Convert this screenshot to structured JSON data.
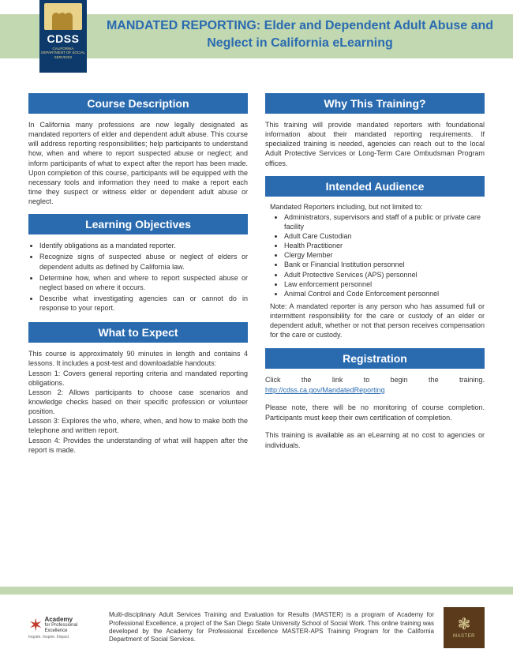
{
  "colors": {
    "band": "#c2d8b0",
    "header_blue": "#2a6bb0",
    "logo_navy": "#0d3a6b",
    "logo_gold": "#e8d28a",
    "text": "#333333",
    "link": "#2a6bb0"
  },
  "logo": {
    "name": "CDSS",
    "sub": "CALIFORNIA DEPARTMENT OF SOCIAL SERVICES"
  },
  "title": "MANDATED REPORTING: Elder and Dependent Adult Abuse and Neglect in California eLearning",
  "sections": {
    "course_description": {
      "heading": "Course Description",
      "text": "In California many professions are now legally designated as mandated reporters of elder and dependent adult abuse. This course will address reporting responsibilities; help participants to understand how, when and where to report suspected abuse or neglect; and inform participants of what to expect after the report has been made. Upon completion of this course, participants will be equipped with the necessary tools and information they need to make a report each time they suspect or witness elder or dependent adult abuse or neglect."
    },
    "learning_objectives": {
      "heading": "Learning Objectives",
      "items": [
        "Identify obligations as a mandated reporter.",
        "Recognize signs of suspected abuse or neglect of elders or dependent adults as defined by California law.",
        "Determine how, when and where to report suspected abuse or neglect based on where it occurs.",
        "Describe what investigating agencies can or cannot do in response to your report."
      ]
    },
    "what_to_expect": {
      "heading": "What to Expect",
      "text": "This course is approximately 90 minutes in length and contains 4 lessons. It includes a post-test and downloadable handouts:\nLesson 1: Covers general reporting criteria and mandated reporting obligations.\nLesson 2: Allows participants to choose case scenarios and knowledge checks based on their specific profession or volunteer position.\nLesson 3: Explores the who, where, when, and how to make both the telephone and written report.\nLesson 4: Provides the understanding of what will happen after the report is made."
    },
    "why_training": {
      "heading": "Why This Training?",
      "text": "This training will provide mandated reporters with foundational information about their mandated reporting requirements. If specialized training is needed, agencies can reach out to the local Adult Protective Services or Long-Term Care Ombudsman Program offices."
    },
    "intended_audience": {
      "heading": "Intended Audience",
      "intro": "Mandated Reporters including, but not limited to:",
      "items": [
        "Administrators, supervisors and staff of a public or private care facility",
        "Adult Care Custodian",
        "Health Practitioner",
        "Clergy Member",
        "Bank or Financial Institution personnel",
        "Adult Protective Services (APS) personnel",
        "Law enforcement personnel",
        "Animal Control and Code Enforcement personnel"
      ],
      "note": "Note: A mandated reporter is any person who has assumed full or intermittent responsibility for the care or custody of an elder or dependent adult, whether or not that person receives compensation for the care or custody."
    },
    "registration": {
      "heading": "Registration",
      "p1_pre": "Click the link to begin the training. ",
      "link": "http://cdss.ca.gov/MandatedReporting",
      "p2": "Please note, there will be no monitoring of course completion. Participants must keep their own certification of completion.",
      "p3": "This training is available as an eLearning at no cost to agencies or individuals."
    }
  },
  "footer": {
    "academy": {
      "name": "Academy",
      "sub1": "for Professional",
      "sub2": "Excellence",
      "tag": "Inquire. Inspire. Impact."
    },
    "text": "Multi-disciplinary Adult Services Training and Evaluation for Results (MASTER) is a program of Academy for Professional Excellence, a project of the San Diego State University School of Social Work. This online training was developed by the Academy for Professional Excellence MASTER-APS Training Program for the California Department of Social Services.",
    "master": "MASTER"
  }
}
